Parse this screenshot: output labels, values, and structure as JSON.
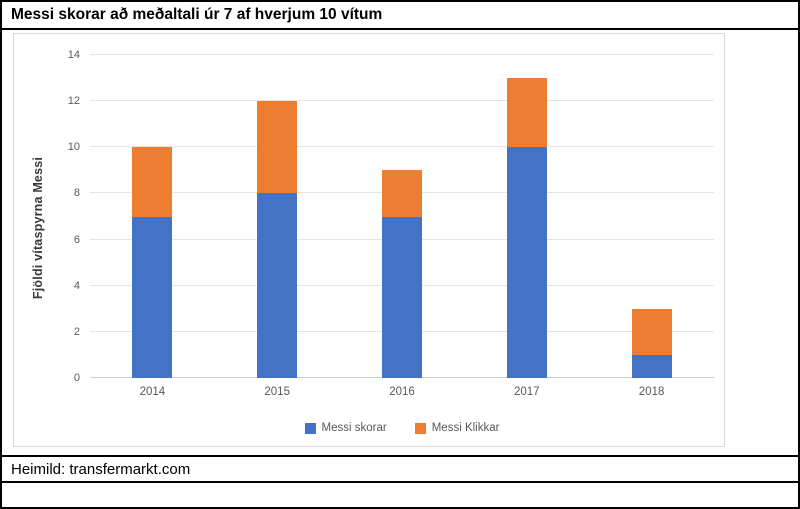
{
  "title": "Messi skorar að meðaltali úr 7 af hverjum 10 vítum",
  "footer": {
    "source": "Heimild: transfermarkt.com"
  },
  "chart_data": {
    "type": "bar",
    "stacked": true,
    "title": "Messi skorar að meðaltali úr 7 af hverjum 10 vítum",
    "categories": [
      "2014",
      "2015",
      "2016",
      "2017",
      "2018"
    ],
    "series": [
      {
        "name": "Messi skorar",
        "color": "#4472C4",
        "values": [
          7,
          8,
          7,
          10,
          1
        ]
      },
      {
        "name": "Messi Klikkar",
        "color": "#ED7D31",
        "values": [
          3,
          4,
          2,
          3,
          2
        ]
      }
    ],
    "totals": [
      10,
      12,
      9,
      13,
      3
    ],
    "xlabel": "",
    "ylabel": "Fjöldi vítaspyrna Messi",
    "ylim": [
      0,
      14
    ],
    "ytick_step": 2,
    "grid": true,
    "legend_position": "bottom",
    "colors": {
      "gridline": "#E4E4E4",
      "axis_line": "#CFCFCF",
      "tick_label": "#595959",
      "legend_text": "#595959",
      "chart_border": "#D9D9D9",
      "frame_border": "#000000"
    }
  }
}
